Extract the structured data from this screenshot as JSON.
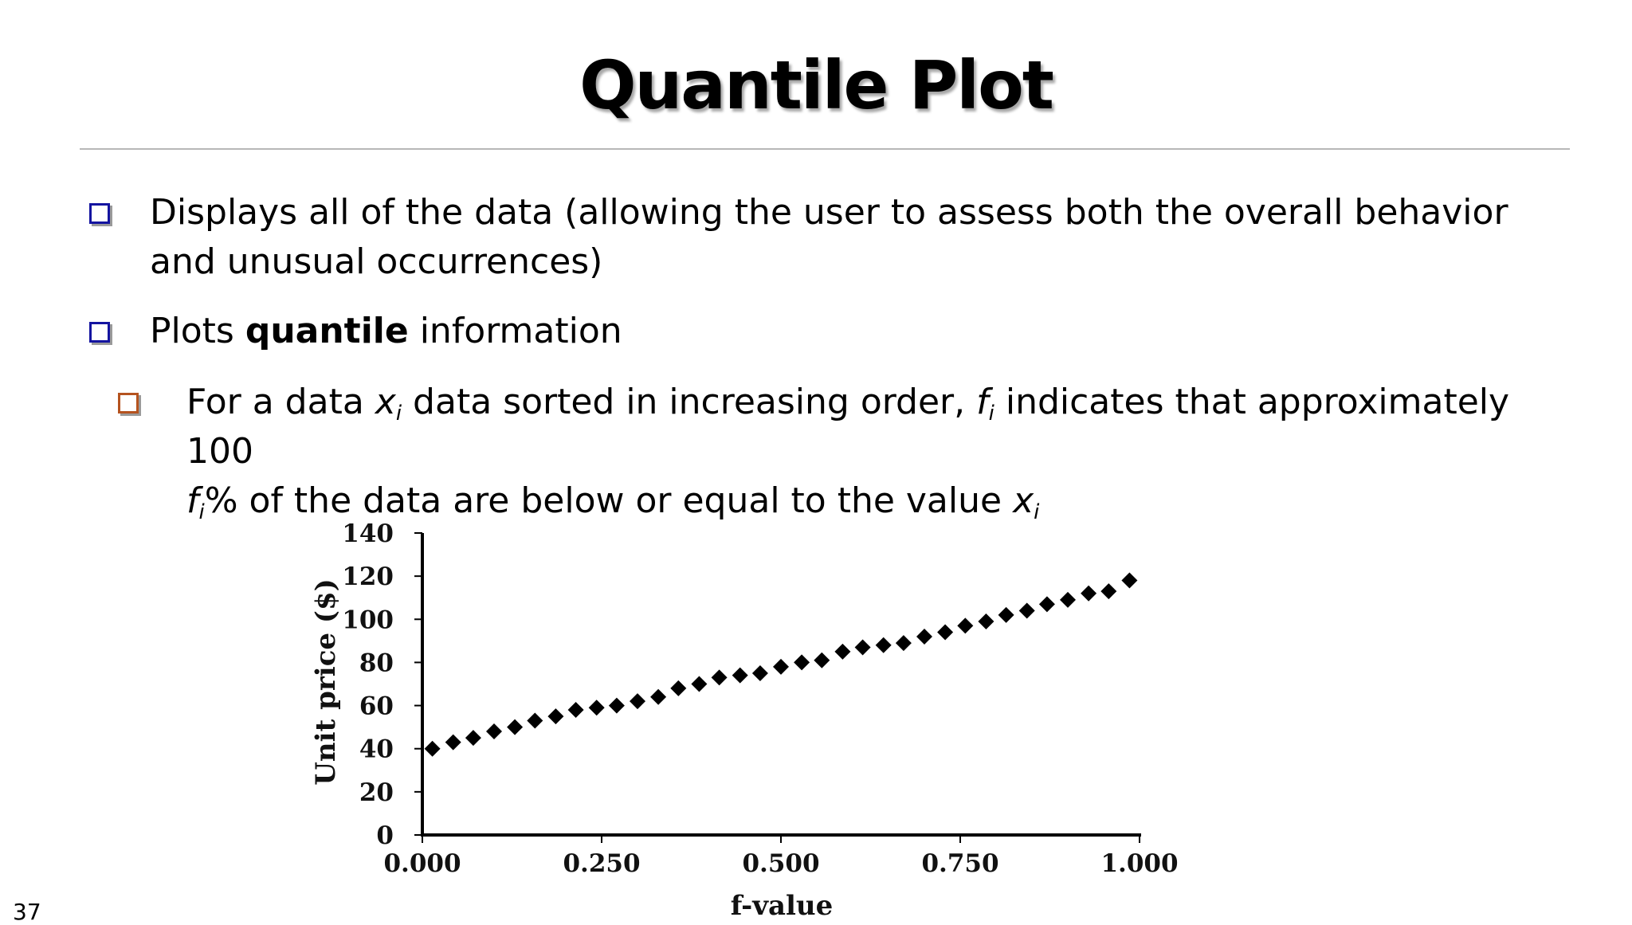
{
  "slide": {
    "title": "Quantile Plot",
    "page_number": "37",
    "bullets": [
      {
        "level": 1,
        "text": "Displays all of the data (allowing the user to assess both the overall behavior and unusual occurrences)"
      },
      {
        "level": 1,
        "text_before": "Plots ",
        "text_bold": "quantile",
        "text_after": " information"
      },
      {
        "level": 2,
        "seg1": "For a data ",
        "var_x": "x",
        "sub_i": "i",
        "seg2": " data sorted in increasing order, ",
        "var_f": "f",
        "seg3": " indicates that approximately 100",
        "seg4": "% of the data are below or equal to the value "
      }
    ],
    "colors": {
      "level1_bullet": "#1414a0",
      "level2_bullet": "#b5531f"
    }
  },
  "chart_data": {
    "type": "scatter",
    "marker": "diamond",
    "xlabel": "f-value",
    "ylabel": "Unit price ($)",
    "xlim": [
      0,
      1
    ],
    "ylim": [
      0,
      140
    ],
    "xticks": [
      "0.000",
      "0.250",
      "0.500",
      "0.750",
      "1.000"
    ],
    "xtick_values": [
      0,
      0.25,
      0.5,
      0.75,
      1.0
    ],
    "yticks": [
      "0",
      "20",
      "40",
      "60",
      "80",
      "100",
      "120",
      "140"
    ],
    "ytick_values": [
      0,
      20,
      40,
      60,
      80,
      100,
      120,
      140
    ],
    "grid": false,
    "series": [
      {
        "x": [
          0.014,
          0.043,
          0.071,
          0.1,
          0.129,
          0.157,
          0.186,
          0.214,
          0.243,
          0.271,
          0.3,
          0.329,
          0.357,
          0.386,
          0.414,
          0.443,
          0.471,
          0.5,
          0.529,
          0.557,
          0.586,
          0.614,
          0.643,
          0.671,
          0.7,
          0.729,
          0.757,
          0.786,
          0.814,
          0.843,
          0.871,
          0.9,
          0.929,
          0.957,
          0.986
        ],
        "y": [
          40,
          43,
          45,
          48,
          50,
          53,
          55,
          58,
          59,
          60,
          62,
          64,
          68,
          70,
          73,
          74,
          75,
          78,
          80,
          81,
          85,
          87,
          88,
          89,
          92,
          94,
          97,
          99,
          102,
          104,
          107,
          109,
          112,
          113,
          118
        ]
      }
    ]
  }
}
